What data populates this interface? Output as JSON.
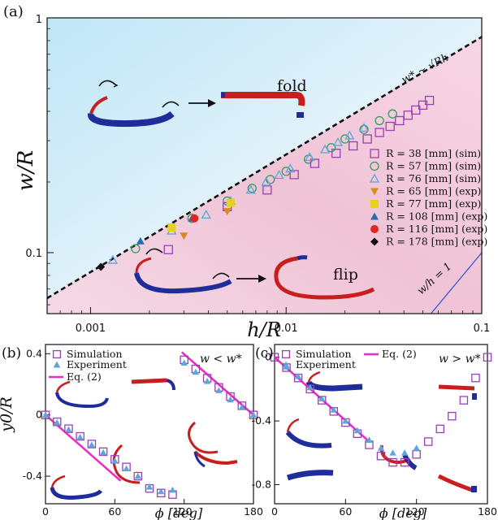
{
  "chart_data": [
    {
      "panel": "(a)",
      "type": "scatter",
      "x_scale": "log",
      "y_scale": "log",
      "xlim": [
        0.0006,
        0.1
      ],
      "ylim": [
        0.055,
        1
      ],
      "xlabel": "h/R",
      "ylabel": "w/R",
      "x_ticks": [
        "0.001",
        "0.01",
        "0.1"
      ],
      "y_ticks": [
        "0.1",
        "1"
      ],
      "fit_line": {
        "label": "w* ~ √Rh",
        "x": [
          0.0006,
          0.1
        ],
        "y": [
          0.064,
          0.83
        ]
      },
      "reference_line": {
        "label": "w/h = 1"
      },
      "regions": [
        "fold",
        "flip"
      ],
      "legend_position": "center-right",
      "series": [
        {
          "name": "R =  38 [mm] (sim)",
          "marker": "square-open",
          "color": "#9b3fb5",
          "x": [
            0.0025,
            0.005,
            0.008,
            0.011,
            0.014,
            0.018,
            0.022,
            0.026,
            0.03,
            0.034,
            0.038,
            0.042,
            0.046,
            0.05,
            0.054
          ],
          "y": [
            0.103,
            0.157,
            0.185,
            0.215,
            0.24,
            0.265,
            0.285,
            0.305,
            0.325,
            0.345,
            0.365,
            0.385,
            0.405,
            0.425,
            0.445
          ]
        },
        {
          "name": "R =  57 [mm] (sim)",
          "marker": "circle-open",
          "color": "#2ca05a",
          "x": [
            0.0017,
            0.0033,
            0.005,
            0.0067,
            0.0083,
            0.01,
            0.013,
            0.017,
            0.02,
            0.025,
            0.03,
            0.035
          ],
          "y": [
            0.104,
            0.14,
            0.166,
            0.188,
            0.205,
            0.222,
            0.25,
            0.28,
            0.305,
            0.335,
            0.365,
            0.39
          ]
        },
        {
          "name": "R =  76 [mm] (sim)",
          "marker": "triangle-open",
          "color": "#5aa7d8",
          "x": [
            0.0013,
            0.0026,
            0.0039,
            0.0052,
            0.0066,
            0.0079,
            0.0092,
            0.0105,
            0.0132,
            0.0158,
            0.0184,
            0.0211,
            0.025
          ],
          "y": [
            0.093,
            0.124,
            0.145,
            0.166,
            0.185,
            0.2,
            0.214,
            0.228,
            0.255,
            0.275,
            0.295,
            0.315,
            0.34
          ]
        },
        {
          "name": "R =  65 [mm] (exp)",
          "marker": "triangle-down",
          "color": "#d98a1c",
          "x": [
            0.003,
            0.005
          ],
          "y": [
            0.118,
            0.15
          ]
        },
        {
          "name": "R =  77 [mm] (exp)",
          "marker": "square",
          "color": "#e6d21a",
          "x": [
            0.0026,
            0.0052
          ],
          "y": [
            0.128,
            0.163
          ]
        },
        {
          "name": "R = 108 [mm] (exp)",
          "marker": "triangle",
          "color": "#2a6db5",
          "x": [
            0.0018,
            0.0033
          ],
          "y": [
            0.112,
            0.14
          ]
        },
        {
          "name": "R = 116 [mm] (exp)",
          "marker": "circle",
          "color": "#e0261e",
          "x": [
            0.0034
          ],
          "y": [
            0.14
          ]
        },
        {
          "name": "R = 178 [mm] (exp)",
          "marker": "diamond",
          "color": "#111111",
          "x": [
            0.00113
          ],
          "y": [
            0.087
          ]
        }
      ]
    },
    {
      "panel": "(b)",
      "type": "scatter",
      "xlim": [
        0,
        180
      ],
      "ylim": [
        -0.58,
        0.46
      ],
      "xlabel": "ϕ [deg]",
      "ylabel": "y0/R",
      "x_ticks": [
        "0",
        "60",
        "120",
        "180"
      ],
      "y_ticks": [
        "0.4",
        "0",
        "-0.4"
      ],
      "condition": "w < w*",
      "legend_position": "top-left",
      "series": [
        {
          "name": "Simulation",
          "marker": "square-open",
          "color": "#9b3fb5",
          "x": [
            0,
            10,
            20,
            30,
            40,
            50,
            60,
            70,
            80,
            90,
            100,
            110,
            120,
            130,
            140,
            150,
            160,
            170,
            180
          ],
          "y": [
            0,
            -0.045,
            -0.09,
            -0.14,
            -0.19,
            -0.24,
            -0.29,
            -0.34,
            -0.4,
            -0.48,
            -0.51,
            -0.52,
            0.36,
            0.3,
            0.24,
            0.18,
            0.12,
            0.06,
            0
          ]
        },
        {
          "name": "Experiment",
          "marker": "triangle",
          "color": "#5aa7d8",
          "x": [
            0,
            10,
            20,
            30,
            40,
            50,
            60,
            70,
            80,
            90,
            100,
            110,
            120,
            130,
            140,
            150,
            160,
            170,
            180
          ],
          "y": [
            0,
            -0.05,
            -0.095,
            -0.145,
            -0.195,
            -0.245,
            -0.3,
            -0.35,
            -0.4,
            -0.47,
            -0.5,
            -0.49,
            0.34,
            0.28,
            0.22,
            0.16,
            0.1,
            0.05,
            0
          ]
        },
        {
          "name": "Eq. (2)",
          "marker": "line",
          "color": "#e62ec8",
          "segments": [
            {
              "x": [
                0,
                65
              ],
              "y": [
                0,
                -0.43
              ]
            },
            {
              "x": [
                118,
                180
              ],
              "y": [
                0.41,
                0
              ]
            }
          ]
        }
      ]
    },
    {
      "panel": "(c)",
      "type": "scatter",
      "xlim": [
        0,
        180
      ],
      "ylim": [
        -0.92,
        0.08
      ],
      "xlabel": "ϕ [deg]",
      "ylabel": "",
      "x_ticks": [
        "0",
        "60",
        "120",
        "180"
      ],
      "y_ticks": [
        "0",
        "-0.4",
        "-0.8"
      ],
      "condition": "w > w*",
      "legend_position": "top-left",
      "series": [
        {
          "name": "Simulation",
          "marker": "square-open",
          "color": "#9b3fb5",
          "x": [
            0,
            10,
            20,
            30,
            40,
            50,
            60,
            70,
            80,
            90,
            100,
            110,
            120,
            130,
            140,
            150,
            160,
            170,
            180
          ],
          "y": [
            0,
            -0.065,
            -0.13,
            -0.2,
            -0.27,
            -0.34,
            -0.41,
            -0.48,
            -0.55,
            -0.62,
            -0.66,
            -0.66,
            -0.61,
            -0.53,
            -0.45,
            -0.37,
            -0.27,
            -0.13,
            0
          ]
        },
        {
          "name": "Experiment",
          "marker": "triangle",
          "color": "#5aa7d8",
          "x": [
            10,
            20,
            30,
            40,
            50,
            60,
            70,
            80,
            90,
            100,
            110,
            120
          ],
          "y": [
            -0.06,
            -0.12,
            -0.19,
            -0.26,
            -0.33,
            -0.4,
            -0.46,
            -0.52,
            -0.57,
            -0.6,
            -0.6,
            -0.57
          ]
        },
        {
          "name": "Eq. (2)",
          "marker": "line",
          "color": "#e62ec8",
          "segments": [
            {
              "x": [
                0,
                80
              ],
              "y": [
                0,
                -0.53
              ]
            }
          ]
        }
      ]
    }
  ]
}
